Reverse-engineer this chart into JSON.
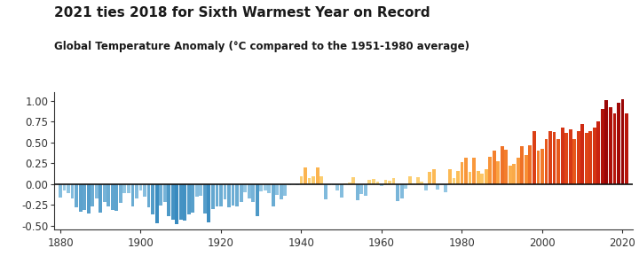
{
  "title": "2021 ties 2018 for Sixth Warmest Year on Record",
  "subtitle": "Global Temperature Anomaly (°C compared to the 1951-1980 average)",
  "years": [
    1880,
    1881,
    1882,
    1883,
    1884,
    1885,
    1886,
    1887,
    1888,
    1889,
    1890,
    1891,
    1892,
    1893,
    1894,
    1895,
    1896,
    1897,
    1898,
    1899,
    1900,
    1901,
    1902,
    1903,
    1904,
    1905,
    1906,
    1907,
    1908,
    1909,
    1910,
    1911,
    1912,
    1913,
    1914,
    1915,
    1916,
    1917,
    1918,
    1919,
    1920,
    1921,
    1922,
    1923,
    1924,
    1925,
    1926,
    1927,
    1928,
    1929,
    1930,
    1931,
    1932,
    1933,
    1934,
    1935,
    1936,
    1937,
    1938,
    1939,
    1940,
    1941,
    1942,
    1943,
    1944,
    1945,
    1946,
    1947,
    1948,
    1949,
    1950,
    1951,
    1952,
    1953,
    1954,
    1955,
    1956,
    1957,
    1958,
    1959,
    1960,
    1961,
    1962,
    1963,
    1964,
    1965,
    1966,
    1967,
    1968,
    1969,
    1970,
    1971,
    1972,
    1973,
    1974,
    1975,
    1976,
    1977,
    1978,
    1979,
    1980,
    1981,
    1982,
    1983,
    1984,
    1985,
    1986,
    1987,
    1988,
    1989,
    1990,
    1991,
    1992,
    1993,
    1994,
    1995,
    1996,
    1997,
    1998,
    1999,
    2000,
    2001,
    2002,
    2003,
    2004,
    2005,
    2006,
    2007,
    2008,
    2009,
    2010,
    2011,
    2012,
    2013,
    2014,
    2015,
    2016,
    2017,
    2018,
    2019,
    2020,
    2021
  ],
  "anomalies": [
    -0.16,
    -0.08,
    -0.11,
    -0.17,
    -0.28,
    -0.33,
    -0.31,
    -0.36,
    -0.27,
    -0.17,
    -0.35,
    -0.22,
    -0.27,
    -0.31,
    -0.32,
    -0.23,
    -0.11,
    -0.11,
    -0.27,
    -0.17,
    -0.08,
    -0.15,
    -0.28,
    -0.37,
    -0.47,
    -0.26,
    -0.22,
    -0.39,
    -0.43,
    -0.48,
    -0.43,
    -0.44,
    -0.37,
    -0.35,
    -0.15,
    -0.14,
    -0.36,
    -0.46,
    -0.3,
    -0.27,
    -0.27,
    -0.19,
    -0.28,
    -0.26,
    -0.27,
    -0.22,
    -0.1,
    -0.17,
    -0.22,
    -0.39,
    -0.09,
    -0.08,
    -0.11,
    -0.27,
    -0.13,
    -0.19,
    -0.14,
    -0.02,
    -0.0,
    -0.01,
    0.09,
    0.2,
    0.07,
    0.09,
    0.2,
    0.09,
    -0.18,
    -0.02,
    -0.01,
    -0.08,
    -0.16,
    0.01,
    0.02,
    0.08,
    -0.2,
    -0.12,
    -0.14,
    0.05,
    0.06,
    0.03,
    -0.03,
    0.05,
    0.04,
    0.07,
    -0.21,
    -0.17,
    -0.06,
    0.09,
    0.01,
    0.08,
    0.03,
    -0.08,
    0.14,
    0.18,
    -0.07,
    -0.01,
    -0.1,
    0.18,
    0.07,
    0.16,
    0.26,
    0.32,
    0.14,
    0.31,
    0.16,
    0.12,
    0.18,
    0.33,
    0.4,
    0.27,
    0.45,
    0.41,
    0.22,
    0.24,
    0.31,
    0.45,
    0.35,
    0.46,
    0.63,
    0.4,
    0.42,
    0.54,
    0.63,
    0.62,
    0.54,
    0.68,
    0.61,
    0.66,
    0.54,
    0.64,
    0.72,
    0.61,
    0.64,
    0.68,
    0.75,
    0.9,
    1.01,
    0.92,
    0.85,
    0.98,
    1.02,
    0.85
  ],
  "ylim": [
    -0.55,
    1.1
  ],
  "xlim": [
    1878.5,
    2022.5
  ],
  "yticks": [
    -0.5,
    -0.25,
    0.0,
    0.25,
    0.5,
    0.75,
    1.0
  ],
  "ytick_labels": [
    "-0.50",
    "-0.25",
    "0.00",
    "0.25",
    "0.50",
    "0.75",
    "1.00"
  ],
  "xticks": [
    1880,
    1900,
    1920,
    1940,
    1960,
    1980,
    2000,
    2020
  ],
  "bg_color": "#ffffff",
  "title_color": "#1a1a1a",
  "subtitle_color": "#1a1a1a",
  "zero_line_color": "#111111",
  "axis_color": "#333333",
  "neg_color_light": [
    0.67,
    0.84,
    0.93
  ],
  "neg_color_dark": [
    0.2,
    0.53,
    0.74
  ],
  "pos_color_stops": [
    [
      0.0,
      [
        0.99,
        0.88,
        0.56
      ]
    ],
    [
      0.15,
      [
        0.99,
        0.75,
        0.35
      ]
    ],
    [
      0.35,
      [
        0.97,
        0.55,
        0.2
      ]
    ],
    [
      0.55,
      [
        0.9,
        0.32,
        0.1
      ]
    ],
    [
      0.75,
      [
        0.78,
        0.12,
        0.06
      ]
    ],
    [
      1.0,
      [
        0.6,
        0.02,
        0.02
      ]
    ]
  ]
}
